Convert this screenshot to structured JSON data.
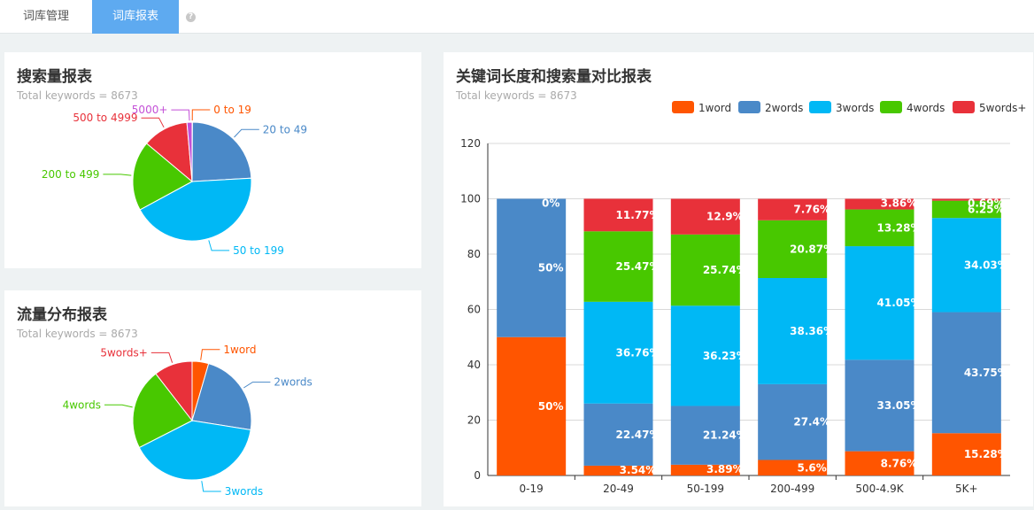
{
  "tabs": [
    {
      "label": "词库管理"
    },
    {
      "label": "词库报表"
    }
  ],
  "help_icon": "question-icon",
  "search_volume_report": {
    "title": "搜索量报表",
    "subtitle": "Total keywords = 8673"
  },
  "traffic_report": {
    "title": "流量分布报表",
    "subtitle": "Total keywords = 8673"
  },
  "length_report": {
    "title": "关键词长度和搜索量对比报表",
    "subtitle": "Total keywords = 8673"
  },
  "colors": {
    "orange": "#ff5500",
    "blue": "#4a89c8",
    "cyan": "#00b8f5",
    "green": "#48c800",
    "red": "#e8313a",
    "purple": "#c34fd7"
  },
  "chart_data": [
    {
      "type": "pie",
      "labels": [
        "0 to 19",
        "20 to 49",
        "50 to 199",
        "200 to 499",
        "500 to 4999",
        "5000+"
      ],
      "values": [
        0.1,
        24,
        43,
        19,
        12.5,
        1.4
      ],
      "colors": [
        "#ff5500",
        "#4a89c8",
        "#00b8f5",
        "#48c800",
        "#e8313a",
        "#c34fd7"
      ]
    },
    {
      "type": "pie",
      "labels": [
        "1word",
        "2words",
        "3words",
        "4words",
        "5words+"
      ],
      "values": [
        4.5,
        23,
        40,
        22,
        10.5
      ],
      "colors": [
        "#ff5500",
        "#4a89c8",
        "#00b8f5",
        "#48c800",
        "#e8313a"
      ]
    },
    {
      "type": "bar",
      "stacked": true,
      "categories": [
        "0-19",
        "20-49",
        "50-199",
        "200-499",
        "500-4.9K",
        "5K+"
      ],
      "ylim": [
        0,
        120
      ],
      "yticks": [
        0,
        20,
        40,
        60,
        80,
        100,
        120
      ],
      "grid": true,
      "legend": "top-right",
      "series": [
        {
          "name": "1word",
          "color": "#ff5500",
          "values": [
            50,
            3.54,
            3.89,
            5.6,
            8.76,
            15.28
          ],
          "labels": [
            "50%",
            "3.54%",
            "3.89%",
            "5.6%",
            "8.76%",
            "15.28%"
          ]
        },
        {
          "name": "2words",
          "color": "#4a89c8",
          "values": [
            50,
            22.47,
            21.24,
            27.4,
            33.05,
            43.75
          ],
          "labels": [
            "50%",
            "22.47%",
            "21.24%",
            "27.4%",
            "33.05%",
            "43.75%"
          ]
        },
        {
          "name": "3words",
          "color": "#00b8f5",
          "values": [
            0,
            36.76,
            36.23,
            38.36,
            41.05,
            34.03
          ],
          "labels": [
            "",
            "36.76%",
            "36.23%",
            "38.36%",
            "41.05%",
            "34.03%"
          ]
        },
        {
          "name": "4words",
          "color": "#48c800",
          "values": [
            0,
            25.47,
            25.74,
            20.87,
            13.28,
            6.25
          ],
          "labels": [
            "",
            "25.47%",
            "25.74%",
            "20.87%",
            "13.28%",
            "6.25%"
          ]
        },
        {
          "name": "5words+",
          "color": "#e8313a",
          "values": [
            0,
            11.77,
            12.9,
            7.76,
            3.86,
            0.69
          ],
          "labels": [
            "0%",
            "11.77%",
            "12.9%",
            "7.76%",
            "3.86%",
            "0.69%"
          ]
        }
      ]
    }
  ]
}
